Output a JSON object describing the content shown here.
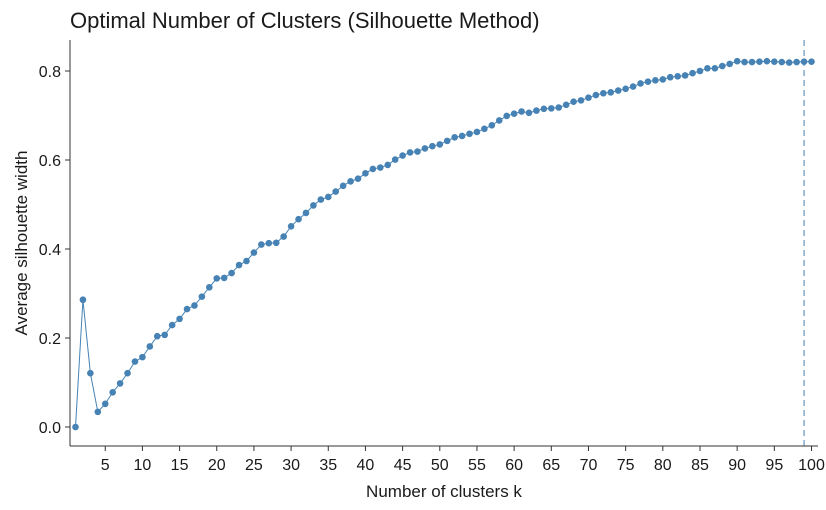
{
  "chart_data": {
    "type": "line",
    "title": "Optimal Number of Clusters (Silhouette Method)",
    "xlabel": "Number of clusters k",
    "ylabel": "Average silhouette width",
    "xlim": [
      1,
      100
    ],
    "ylim": [
      0,
      0.82
    ],
    "x_ticks": [
      5,
      10,
      15,
      20,
      25,
      30,
      35,
      40,
      45,
      50,
      55,
      60,
      65,
      70,
      75,
      80,
      85,
      90,
      95,
      100
    ],
    "y_ticks": [
      0.0,
      0.2,
      0.4,
      0.6,
      0.8
    ],
    "y_tick_labels": [
      "0.0",
      "0.2",
      "0.4",
      "0.6",
      "0.8"
    ],
    "grid": false,
    "legend": "none",
    "series": [
      {
        "color": "#4682B4",
        "marker": "circle",
        "x": [
          1,
          2,
          3,
          4,
          5,
          6,
          7,
          8,
          9,
          10,
          11,
          12,
          13,
          14,
          15,
          16,
          17,
          18,
          19,
          20,
          21,
          22,
          23,
          24,
          25,
          26,
          27,
          28,
          29,
          30,
          31,
          32,
          33,
          34,
          35,
          36,
          37,
          38,
          39,
          40,
          41,
          42,
          43,
          44,
          45,
          46,
          47,
          48,
          49,
          50,
          51,
          52,
          53,
          54,
          55,
          56,
          57,
          58,
          59,
          60,
          61,
          62,
          63,
          64,
          65,
          66,
          67,
          68,
          69,
          70,
          71,
          72,
          73,
          74,
          75,
          76,
          77,
          78,
          79,
          80,
          81,
          82,
          83,
          84,
          85,
          86,
          87,
          88,
          89,
          90,
          91,
          92,
          93,
          94,
          95,
          96,
          97,
          98,
          99,
          100
        ],
        "y": [
          0.0,
          0.286,
          0.121,
          0.034,
          0.052,
          0.078,
          0.098,
          0.121,
          0.147,
          0.157,
          0.181,
          0.204,
          0.207,
          0.229,
          0.243,
          0.265,
          0.273,
          0.293,
          0.314,
          0.334,
          0.335,
          0.346,
          0.364,
          0.373,
          0.392,
          0.41,
          0.413,
          0.414,
          0.428,
          0.451,
          0.467,
          0.481,
          0.498,
          0.511,
          0.517,
          0.529,
          0.542,
          0.552,
          0.558,
          0.57,
          0.58,
          0.583,
          0.589,
          0.601,
          0.61,
          0.617,
          0.619,
          0.626,
          0.631,
          0.635,
          0.643,
          0.651,
          0.654,
          0.659,
          0.663,
          0.67,
          0.678,
          0.689,
          0.699,
          0.704,
          0.709,
          0.706,
          0.711,
          0.715,
          0.716,
          0.718,
          0.724,
          0.731,
          0.734,
          0.74,
          0.746,
          0.75,
          0.752,
          0.756,
          0.76,
          0.765,
          0.772,
          0.776,
          0.779,
          0.781,
          0.786,
          0.788,
          0.79,
          0.795,
          0.8,
          0.806,
          0.806,
          0.811,
          0.816,
          0.822,
          0.82,
          0.82,
          0.821,
          0.822,
          0.821,
          0.82,
          0.819,
          0.82,
          0.821,
          0.821
        ]
      }
    ],
    "reference_line": {
      "axis": "x",
      "value": 99,
      "style": "dashed",
      "color": "#4682B4"
    }
  }
}
